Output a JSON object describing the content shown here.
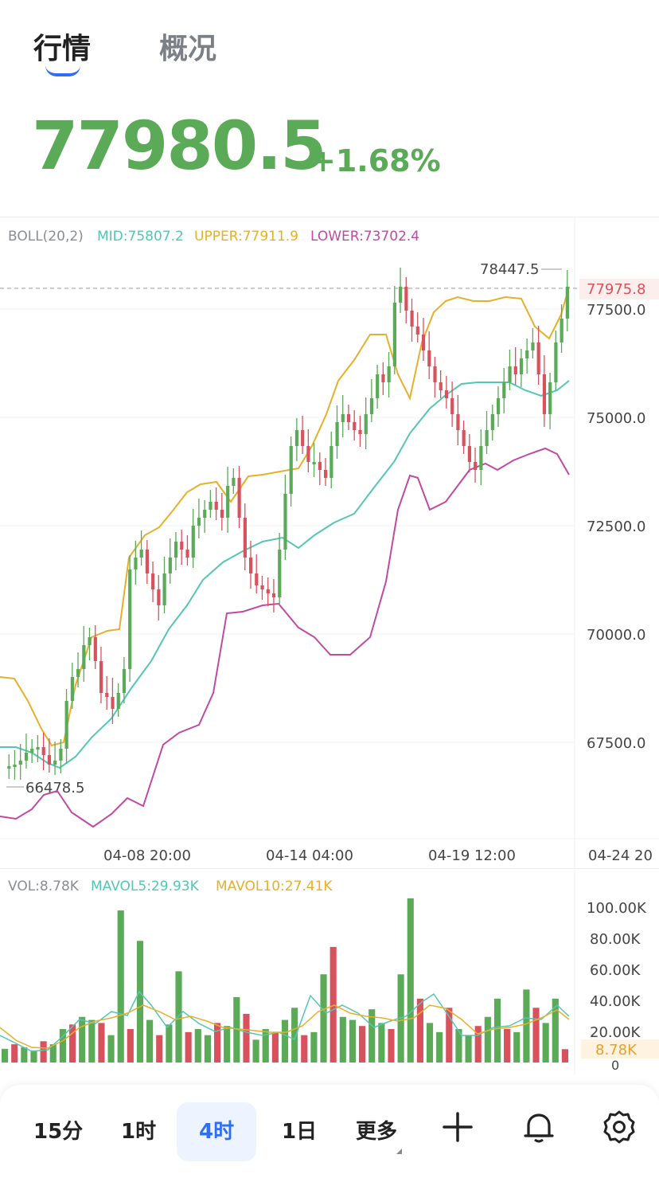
{
  "tabs": {
    "active": "行情",
    "inactive": "概况"
  },
  "price": {
    "value": "77980.5",
    "change": "+1.68%",
    "color": "#5aaa58"
  },
  "boll": {
    "name": "BOLL(20,2)",
    "mid": "MID:75807.2",
    "upper": "UPPER:77911.9",
    "lower": "LOWER:73702.4"
  },
  "price_axis": [
    "77500.0",
    "75000.0",
    "72500.0",
    "70000.0",
    "67500.0"
  ],
  "current_price_label": "77975.8",
  "high_label": "78447.5",
  "low_label": "66478.5",
  "time_axis": [
    "04-08 20:00",
    "04-14 04:00",
    "04-19 12:00",
    "04-24 20"
  ],
  "vol": {
    "vol": "VOL:8.78K",
    "mavol5": "MAVOL5:29.93K",
    "mavol10": "MAVOL10:27.41K",
    "axis": [
      "100.00K",
      "80.00K",
      "60.00K",
      "40.00K",
      "20.00K",
      "0"
    ],
    "current_label": "8.78K"
  },
  "bottom_bar": {
    "intervals": [
      "15分",
      "1时",
      "4时",
      "1日"
    ],
    "active": "4时",
    "more": "更多",
    "icons": [
      "plus-icon",
      "bell-icon",
      "gear-icon"
    ]
  },
  "colors": {
    "up": "#5aaa58",
    "down": "#d8525d",
    "mid": "#55c6b4",
    "upper": "#e6b02a",
    "lower": "#c04aa1",
    "accent": "#2f6df2"
  },
  "chart_data": [
    {
      "type": "line",
      "title": "BOLL(20,2)",
      "x_ticks": [
        "04-08 20:00",
        "04-14 04:00",
        "04-19 12:00",
        "04-24 20"
      ],
      "y_ticks": [
        77500,
        75000,
        72500,
        70000,
        67500
      ],
      "series": [
        {
          "name": "MID",
          "values": [
            67400,
            67300,
            67100,
            67300,
            68200,
            69000,
            70200,
            70900,
            71500,
            71950,
            71800,
            71200,
            71000,
            71900,
            72500,
            73000,
            73500,
            74400,
            75100,
            75500,
            75700,
            75400,
            75700,
            75807
          ]
        },
        {
          "name": "UPPER",
          "values": [
            69000,
            68800,
            66900,
            69500,
            70200,
            70100,
            72300,
            73000,
            73500,
            73200,
            73400,
            73500,
            73600,
            75100,
            76400,
            77000,
            75000,
            75700,
            77600,
            77700,
            77800,
            77800,
            76800,
            77912
          ]
        },
        {
          "name": "LOWER",
          "values": [
            66000,
            66000,
            66600,
            65600,
            66300,
            66300,
            67800,
            68000,
            70000,
            70300,
            70200,
            69800,
            69300,
            69400,
            70800,
            73600,
            72700,
            73000,
            73700,
            73900,
            74100,
            74300,
            73800,
            73702
          ]
        }
      ],
      "high": 78447.5,
      "low": 66478.5,
      "last": 77975.8
    },
    {
      "type": "bar",
      "title": "VOL",
      "y_ticks": [
        "100.00K",
        "80.00K",
        "60.00K",
        "40.00K",
        "20.00K",
        "0"
      ],
      "ylim": [
        0,
        110000
      ],
      "series": [
        {
          "name": "VOL",
          "values": [
            9000,
            12000,
            10000,
            8000,
            14000,
            12000,
            22000,
            25000,
            30000,
            28000,
            26000,
            18000,
            100000,
            22000,
            80000,
            28000,
            18000,
            25000,
            60000,
            20000,
            22000,
            18000,
            26000,
            24000,
            43000,
            32000,
            15000,
            22000,
            20000,
            28000,
            36000,
            18000,
            20000,
            58000,
            76000,
            30000,
            28000,
            24000,
            35000,
            26000,
            22000,
            58000,
            108000,
            42000,
            26000,
            20000,
            36000,
            22000,
            18000,
            24000,
            30000,
            42000,
            22000,
            20000,
            48000,
            36000,
            26000,
            42000,
            8780
          ]
        }
      ]
    }
  ]
}
